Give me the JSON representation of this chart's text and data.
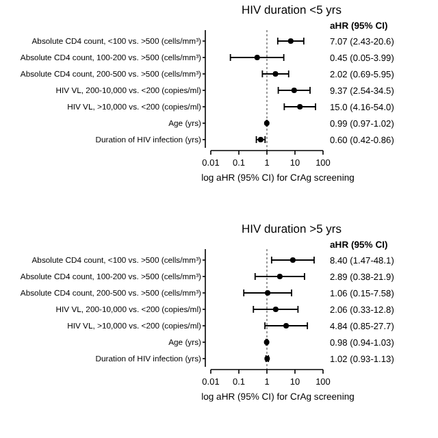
{
  "chart_data": [
    {
      "type": "scatter",
      "orientation": "horizontal",
      "title": "HIV duration <5 yrs",
      "xlabel": "log aHR (95% CI) for CrAg screening",
      "annotations": [
        "aHR (95% CI)"
      ],
      "categories": [
        "Absolute CD4 count, <100 vs. >500 (cells/mm³)",
        "Absolute CD4 count, 100-200 vs. >500 (cells/mm³)",
        "Absolute CD4 count, 200-500 vs. >500 (cells/mm³)",
        "HIV VL, 200-10,000 vs. <200 (copies/ml)",
        "HIV VL, >10,000 vs. <200 (copies/ml)",
        "Age (yrs)",
        "Duration of HIV infection (yrs)"
      ],
      "values": [
        7.07,
        0.45,
        2.02,
        9.37,
        15.0,
        0.99,
        0.6
      ],
      "errors": [
        [
          2.43,
          20.6
        ],
        [
          0.05,
          3.99
        ],
        [
          0.69,
          5.95
        ],
        [
          2.54,
          34.5
        ],
        [
          4.16,
          54.0
        ],
        [
          0.97,
          1.02
        ],
        [
          0.42,
          0.86
        ]
      ],
      "value_labels": [
        "7.07 (2.43-20.6)",
        "0.45 (0.05-3.99)",
        "2.02 (0.69-5.95)",
        "9.37 (2.54-34.5)",
        "15.0 (4.16-54.0)",
        "0.99 (0.97-1.02)",
        "0.60 (0.42-0.86)"
      ],
      "color": "#000000",
      "marker": "circle",
      "log": "x",
      "xlim": [
        0.01,
        100
      ],
      "xticks": [
        0.01,
        0.1,
        1,
        10,
        100
      ],
      "ref_lines": [
        {
          "axis": "x",
          "value": 1,
          "line_style": "dotted",
          "color": "#808080"
        }
      ]
    },
    {
      "type": "scatter",
      "orientation": "horizontal",
      "title": "HIV duration >5 yrs",
      "xlabel": "log aHR (95% CI) for CrAg screening",
      "annotations": [
        "aHR (95% CI)"
      ],
      "categories": [
        "Absolute CD4 count, <100 vs. >500 (cells/mm³)",
        "Absolute CD4 count, 100-200 vs. >500 (cells/mm³)",
        "Absolute CD4 count, 200-500 vs. >500 (cells/mm³)",
        "HIV VL, 200-10,000 vs. <200 (copies/ml)",
        "HIV VL, >10,000 vs. <200 (copies/ml)",
        "Age (yrs)",
        "Duration of HIV infection (yrs)"
      ],
      "values": [
        8.4,
        2.89,
        1.06,
        2.06,
        4.84,
        0.98,
        1.02
      ],
      "errors": [
        [
          1.47,
          48.1
        ],
        [
          0.38,
          21.9
        ],
        [
          0.15,
          7.58
        ],
        [
          0.33,
          12.8
        ],
        [
          0.85,
          27.7
        ],
        [
          0.94,
          1.03
        ],
        [
          0.93,
          1.13
        ]
      ],
      "value_labels": [
        "8.40 (1.47-48.1)",
        "2.89 (0.38-21.9)",
        "1.06 (0.15-7.58)",
        "2.06 (0.33-12.8)",
        "4.84 (0.85-27.7)",
        "0.98 (0.94-1.03)",
        "1.02 (0.93-1.13)"
      ],
      "color": "#000000",
      "marker": "circle",
      "log": "x",
      "xlim": [
        0.01,
        100
      ],
      "xticks": [
        0.01,
        0.1,
        1,
        10,
        100
      ],
      "ref_lines": [
        {
          "axis": "x",
          "value": 1,
          "line_style": "dotted",
          "color": "#808080"
        }
      ]
    }
  ]
}
